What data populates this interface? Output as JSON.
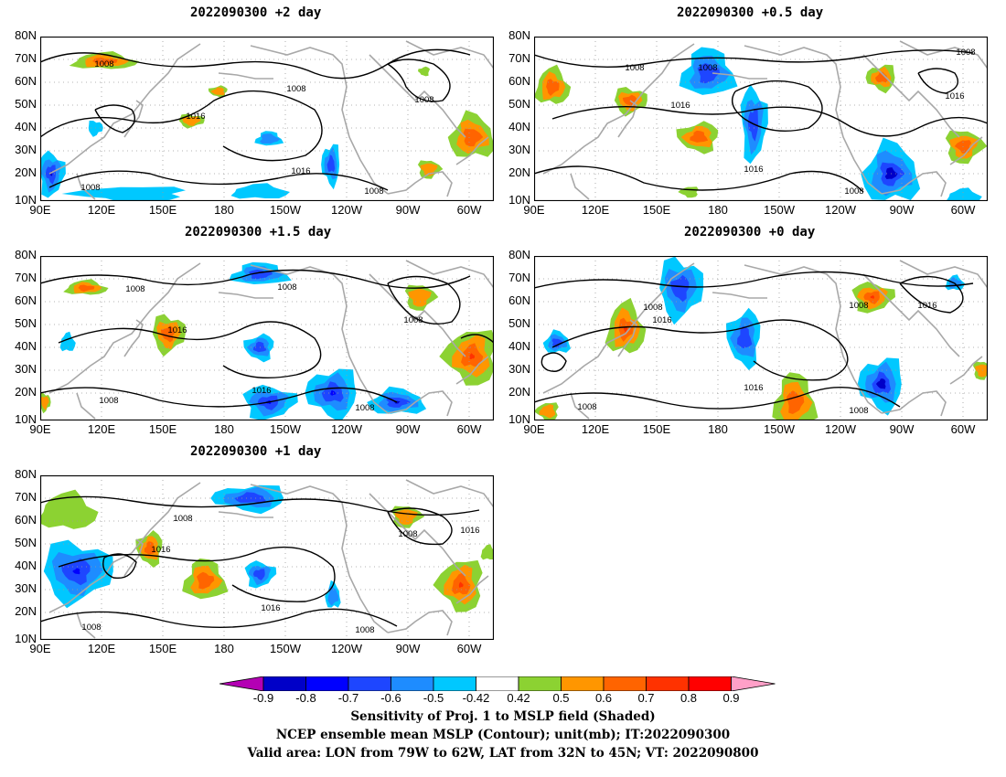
{
  "panels": [
    {
      "id": "p2",
      "title": "2022090300 +2 day"
    },
    {
      "id": "p05",
      "title": "2022090300 +0.5 day"
    },
    {
      "id": "p15",
      "title": "2022090300 +1.5 day"
    },
    {
      "id": "p0",
      "title": "2022090300 +0 day"
    },
    {
      "id": "p1",
      "title": "2022090300 +1 day"
    }
  ],
  "axes": {
    "lat_labels": [
      "80N",
      "70N",
      "60N",
      "50N",
      "40N",
      "30N",
      "20N",
      "10N"
    ],
    "lon_labels": [
      "90E",
      "120E",
      "150E",
      "180",
      "150W",
      "120W",
      "90W",
      "60W"
    ],
    "contour_labels": [
      "1008",
      "1016"
    ]
  },
  "colorbar": {
    "labels": [
      "-0.9",
      "-0.8",
      "-0.7",
      "-0.6",
      "-0.5",
      "-0.42",
      "0.42",
      "0.5",
      "0.6",
      "0.7",
      "0.8",
      "0.9"
    ],
    "colors": [
      "#b400b4",
      "#0000c8",
      "#0000ff",
      "#1e46ff",
      "#1e8cff",
      "#00c8ff",
      "#ffffff",
      "#8cd232",
      "#ff9600",
      "#ff6400",
      "#ff3200",
      "#ff0000",
      "#ffa0c8"
    ]
  },
  "captions": {
    "line1": "Sensitivity of Proj. 1 to MSLP field (Shaded)",
    "line2": "NCEP ensemble mean MSLP (Contour); unit(mb); IT:2022090300",
    "line3": "Valid area: LON from 79W to 62W, LAT from 32N to 45N; VT: 2022090800"
  },
  "style": {
    "contour_color": "#000000",
    "coast_color": "#a8a8a8",
    "grid_color": "#9a9a9a"
  }
}
